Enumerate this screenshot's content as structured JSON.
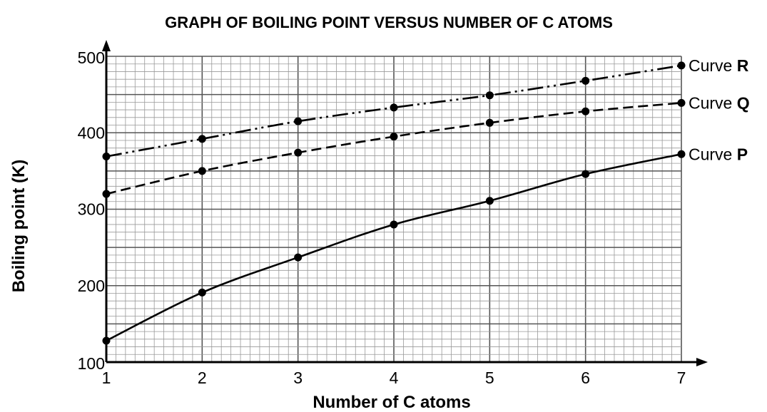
{
  "chart_data": {
    "type": "line",
    "title": "GRAPH OF BOILING POINT VERSUS NUMBER OF C ATOMS",
    "xlabel": "Number of C atoms",
    "ylabel": "Boiling point (K)",
    "xlim": [
      1,
      7
    ],
    "ylim": [
      100,
      500
    ],
    "x_ticks": [
      "1",
      "2",
      "3",
      "4",
      "5",
      "6",
      "7"
    ],
    "y_ticks": [
      "100",
      "200",
      "300",
      "400",
      "500"
    ],
    "grid": "major every 1 unit / 50 K, minor every 0.1 unit / 10 K",
    "x": [
      1,
      2,
      3,
      4,
      5,
      6,
      7
    ],
    "series": [
      {
        "name": "R",
        "label_prefix": "Curve",
        "label_letter": "R",
        "line_style": "dash-dot-dot",
        "values": [
          369,
          392,
          415,
          433,
          449,
          468,
          488
        ]
      },
      {
        "name": "Q",
        "label_prefix": "Curve",
        "label_letter": "Q",
        "line_style": "dashed",
        "values": [
          320,
          350,
          374,
          395,
          413,
          428,
          439
        ]
      },
      {
        "name": "P",
        "label_prefix": "Curve",
        "label_letter": "P",
        "line_style": "solid",
        "values": [
          128,
          191,
          237,
          280,
          311,
          346,
          372
        ]
      }
    ],
    "colors": {
      "line": "#000000",
      "grid_major": "#555555",
      "grid_minor": "#999999"
    }
  }
}
